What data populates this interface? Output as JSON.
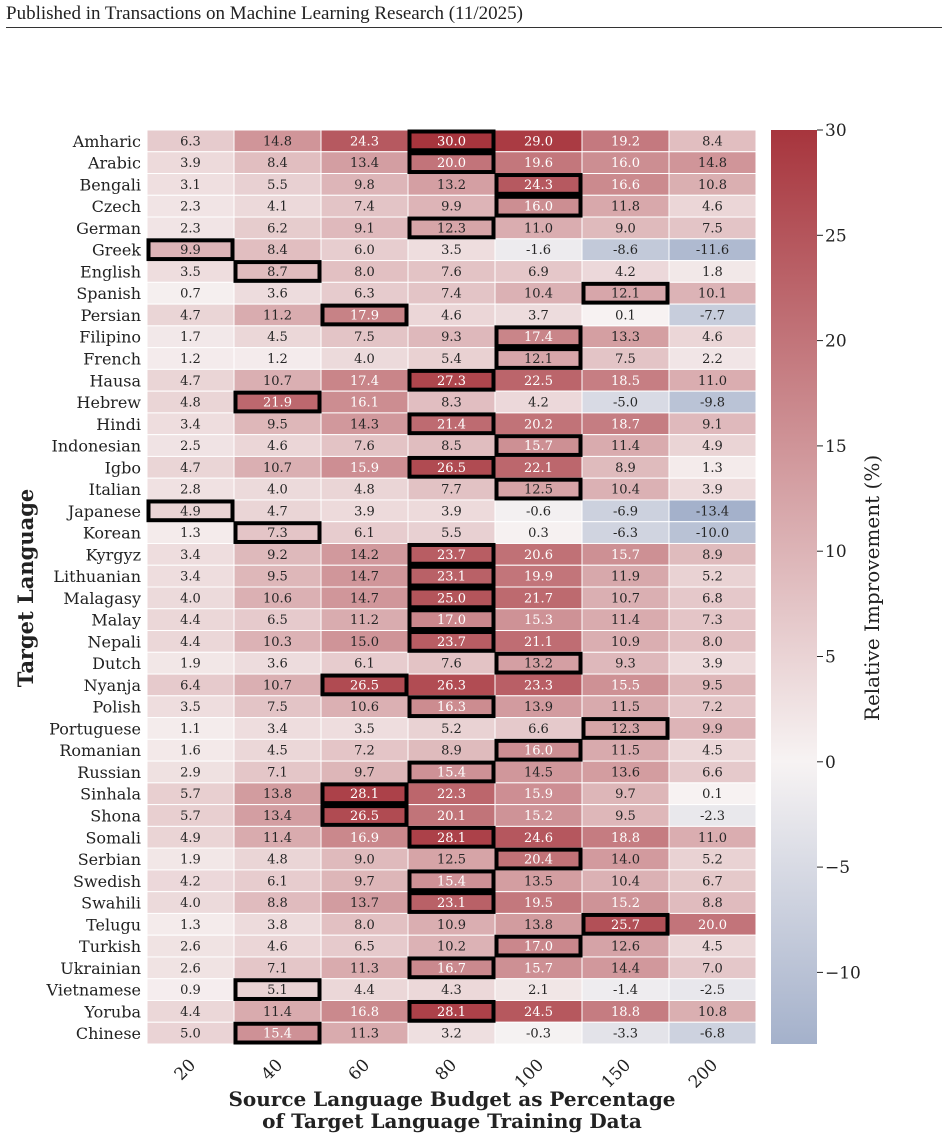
{
  "header": {
    "text": "Published in Transactions on Machine Learning Research (11/2025)"
  },
  "chart_data": {
    "type": "heatmap",
    "title": "",
    "xlabel_line1": "Source Language Budget as Percentage",
    "xlabel_line2": "of Target Language Training Data",
    "ylabel": "Target Language",
    "colorbar_label": "Relative Improvement (%)",
    "colorbar_ticks": [
      "30",
      "25",
      "20",
      "15",
      "10",
      "5",
      "0",
      "−5",
      "−10"
    ],
    "colorbar_tick_values": [
      30,
      25,
      20,
      15,
      10,
      5,
      0,
      -5,
      -10
    ],
    "color_range": [
      -13.4,
      30.0
    ],
    "color_low": "#a4b1cb",
    "color_mid": "#f7f3f3",
    "color_high": "#a7353d",
    "highlight_color": "#000000",
    "x_labels": [
      "20",
      "40",
      "60",
      "80",
      "100",
      "150",
      "200"
    ],
    "y_labels": [
      "Amharic",
      "Arabic",
      "Bengali",
      "Czech",
      "German",
      "Greek",
      "English",
      "Spanish",
      "Persian",
      "Filipino",
      "French",
      "Hausa",
      "Hebrew",
      "Hindi",
      "Indonesian",
      "Igbo",
      "Italian",
      "Japanese",
      "Korean",
      "Kyrgyz",
      "Lithuanian",
      "Malagasy",
      "Malay",
      "Nepali",
      "Dutch",
      "Nyanja",
      "Polish",
      "Portuguese",
      "Romanian",
      "Russian",
      "Sinhala",
      "Shona",
      "Somali",
      "Serbian",
      "Swedish",
      "Swahili",
      "Telugu",
      "Turkish",
      "Ukrainian",
      "Vietnamese",
      "Yoruba",
      "Chinese"
    ],
    "values": [
      [
        "6.3",
        "14.8",
        "24.3",
        "30.0",
        "29.0",
        "19.2",
        "8.4"
      ],
      [
        "3.9",
        "8.4",
        "13.4",
        "20.0",
        "19.6",
        "16.0",
        "14.8"
      ],
      [
        "3.1",
        "5.5",
        "9.8",
        "13.2",
        "24.3",
        "16.6",
        "10.8"
      ],
      [
        "2.3",
        "4.1",
        "7.4",
        "9.9",
        "16.0",
        "11.8",
        "4.6"
      ],
      [
        "2.3",
        "6.2",
        "9.1",
        "12.3",
        "11.0",
        "9.0",
        "7.5"
      ],
      [
        "9.9",
        "8.4",
        "6.0",
        "3.5",
        "-1.6",
        "-8.6",
        "-11.6"
      ],
      [
        "3.5",
        "8.7",
        "8.0",
        "7.6",
        "6.9",
        "4.2",
        "1.8"
      ],
      [
        "0.7",
        "3.6",
        "6.3",
        "7.4",
        "10.4",
        "12.1",
        "10.1"
      ],
      [
        "4.7",
        "11.2",
        "17.9",
        "4.6",
        "3.7",
        "0.1",
        "-7.7"
      ],
      [
        "1.7",
        "4.5",
        "7.5",
        "9.3",
        "17.4",
        "13.3",
        "4.6"
      ],
      [
        "1.2",
        "1.2",
        "4.0",
        "5.4",
        "12.1",
        "7.5",
        "2.2"
      ],
      [
        "4.7",
        "10.7",
        "17.4",
        "27.3",
        "22.5",
        "18.5",
        "11.0"
      ],
      [
        "4.8",
        "21.9",
        "16.1",
        "8.3",
        "4.2",
        "-5.0",
        "-9.8"
      ],
      [
        "3.4",
        "9.5",
        "14.3",
        "21.4",
        "20.2",
        "18.7",
        "9.1"
      ],
      [
        "2.5",
        "4.6",
        "7.6",
        "8.5",
        "15.7",
        "11.4",
        "4.9"
      ],
      [
        "4.7",
        "10.7",
        "15.9",
        "26.5",
        "22.1",
        "8.9",
        "1.3"
      ],
      [
        "2.8",
        "4.0",
        "4.8",
        "7.7",
        "12.5",
        "10.4",
        "3.9"
      ],
      [
        "4.9",
        "4.7",
        "3.9",
        "3.9",
        "-0.6",
        "-6.9",
        "-13.4"
      ],
      [
        "1.3",
        "7.3",
        "6.1",
        "5.5",
        "0.3",
        "-6.3",
        "-10.0"
      ],
      [
        "3.4",
        "9.2",
        "14.2",
        "23.7",
        "20.6",
        "15.7",
        "8.9"
      ],
      [
        "3.4",
        "9.5",
        "14.7",
        "23.1",
        "19.9",
        "11.9",
        "5.2"
      ],
      [
        "4.0",
        "10.6",
        "14.7",
        "25.0",
        "21.7",
        "10.7",
        "6.8"
      ],
      [
        "4.4",
        "6.5",
        "11.2",
        "17.0",
        "15.3",
        "11.4",
        "7.3"
      ],
      [
        "4.4",
        "10.3",
        "15.0",
        "23.7",
        "21.1",
        "10.9",
        "8.0"
      ],
      [
        "1.9",
        "3.6",
        "6.1",
        "7.6",
        "13.2",
        "9.3",
        "3.9"
      ],
      [
        "6.4",
        "10.7",
        "26.5",
        "26.3",
        "23.3",
        "15.5",
        "9.5"
      ],
      [
        "3.5",
        "7.5",
        "10.6",
        "16.3",
        "13.9",
        "11.5",
        "7.2"
      ],
      [
        "1.1",
        "3.4",
        "3.5",
        "5.2",
        "6.6",
        "12.3",
        "9.9"
      ],
      [
        "1.6",
        "4.5",
        "7.2",
        "8.9",
        "16.0",
        "11.5",
        "4.5"
      ],
      [
        "2.9",
        "7.1",
        "9.7",
        "15.4",
        "14.5",
        "13.6",
        "6.6"
      ],
      [
        "5.7",
        "13.8",
        "28.1",
        "22.3",
        "15.9",
        "9.7",
        "0.1"
      ],
      [
        "5.7",
        "13.4",
        "26.5",
        "20.1",
        "15.2",
        "9.5",
        "-2.3"
      ],
      [
        "4.9",
        "11.4",
        "16.9",
        "28.1",
        "24.6",
        "18.8",
        "11.0"
      ],
      [
        "1.9",
        "4.8",
        "9.0",
        "12.5",
        "20.4",
        "14.0",
        "5.2"
      ],
      [
        "4.2",
        "6.1",
        "9.7",
        "15.4",
        "13.5",
        "10.4",
        "6.7"
      ],
      [
        "4.0",
        "8.8",
        "13.7",
        "23.1",
        "19.5",
        "15.2",
        "8.8"
      ],
      [
        "1.3",
        "3.8",
        "8.0",
        "10.9",
        "13.8",
        "25.7",
        "20.0"
      ],
      [
        "2.6",
        "4.6",
        "6.5",
        "10.2",
        "17.0",
        "12.6",
        "4.5"
      ],
      [
        "2.6",
        "7.1",
        "11.3",
        "16.7",
        "15.7",
        "14.4",
        "7.0"
      ],
      [
        "0.9",
        "5.1",
        "4.4",
        "4.3",
        "2.1",
        "-1.4",
        "-2.5"
      ],
      [
        "4.4",
        "11.4",
        "16.8",
        "28.1",
        "24.5",
        "18.8",
        "10.8"
      ],
      [
        "5.0",
        "15.4",
        "11.3",
        "3.2",
        "-0.3",
        "-3.3",
        "-6.8"
      ]
    ],
    "highlighted": [
      [
        "Amharic",
        "80"
      ],
      [
        "Arabic",
        "80"
      ],
      [
        "Bengali",
        "100"
      ],
      [
        "Czech",
        "100"
      ],
      [
        "German",
        "80"
      ],
      [
        "Greek",
        "20"
      ],
      [
        "English",
        "40"
      ],
      [
        "Spanish",
        "150"
      ],
      [
        "Persian",
        "60"
      ],
      [
        "Filipino",
        "100"
      ],
      [
        "French",
        "100"
      ],
      [
        "Hausa",
        "80"
      ],
      [
        "Hebrew",
        "40"
      ],
      [
        "Hindi",
        "80"
      ],
      [
        "Indonesian",
        "100"
      ],
      [
        "Igbo",
        "80"
      ],
      [
        "Italian",
        "100"
      ],
      [
        "Japanese",
        "20"
      ],
      [
        "Korean",
        "40"
      ],
      [
        "Kyrgyz",
        "80"
      ],
      [
        "Lithuanian",
        "80"
      ],
      [
        "Malagasy",
        "80"
      ],
      [
        "Malay",
        "80"
      ],
      [
        "Nepali",
        "80"
      ],
      [
        "Dutch",
        "100"
      ],
      [
        "Nyanja",
        "60"
      ],
      [
        "Polish",
        "80"
      ],
      [
        "Portuguese",
        "150"
      ],
      [
        "Romanian",
        "100"
      ],
      [
        "Russian",
        "80"
      ],
      [
        "Sinhala",
        "60"
      ],
      [
        "Shona",
        "60"
      ],
      [
        "Somali",
        "80"
      ],
      [
        "Serbian",
        "100"
      ],
      [
        "Swedish",
        "80"
      ],
      [
        "Swahili",
        "80"
      ],
      [
        "Telugu",
        "150"
      ],
      [
        "Turkish",
        "100"
      ],
      [
        "Ukrainian",
        "80"
      ],
      [
        "Vietnamese",
        "40"
      ],
      [
        "Yoruba",
        "80"
      ],
      [
        "Chinese",
        "40"
      ]
    ]
  }
}
